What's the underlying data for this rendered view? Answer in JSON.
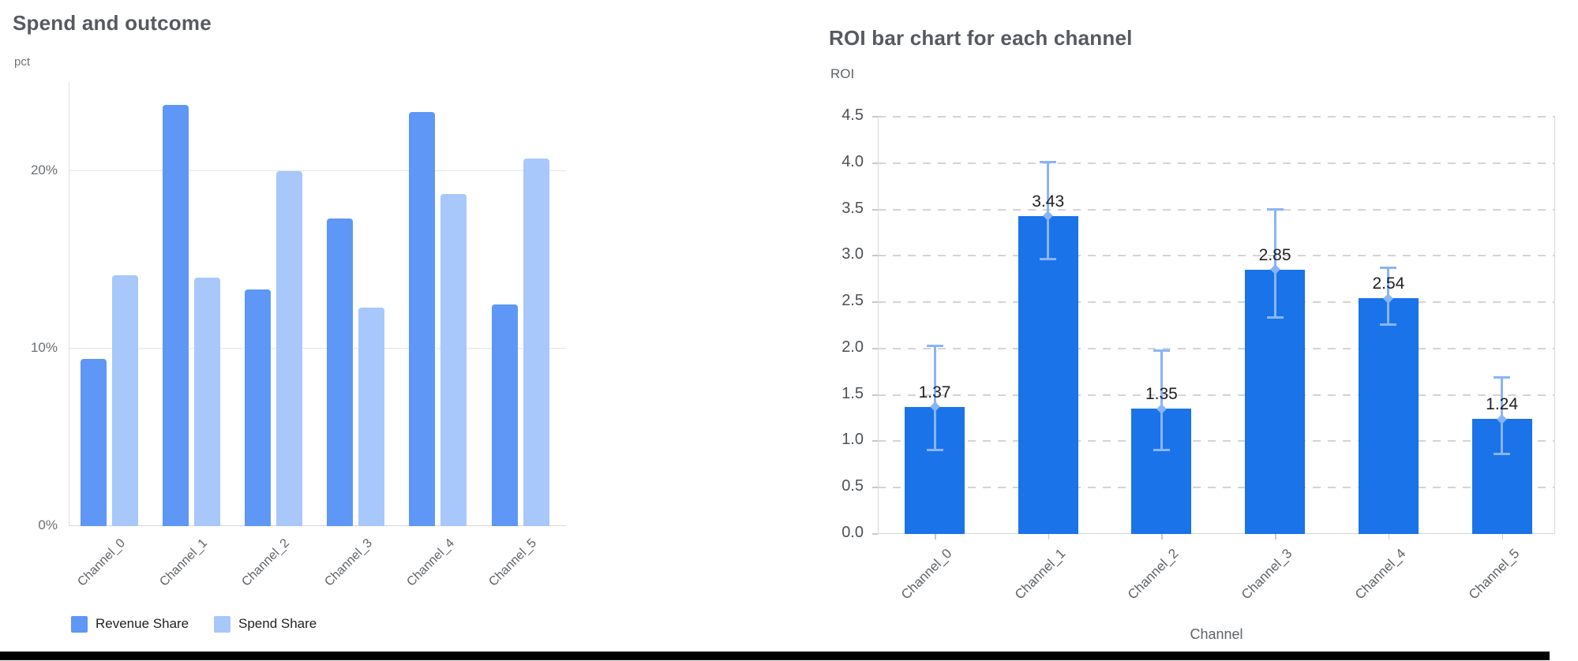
{
  "chart_data": [
    {
      "type": "bar",
      "title": "Spend and outcome",
      "ylabel": "pct",
      "xlabel": "",
      "categories": [
        "Channel_0",
        "Channel_1",
        "Channel_2",
        "Channel_3",
        "Channel_4",
        "Channel_5"
      ],
      "series": [
        {
          "name": "Revenue Share",
          "color": "#5E97F6",
          "values": [
            9.4,
            23.7,
            13.3,
            17.3,
            23.3,
            12.5
          ]
        },
        {
          "name": "Spend Share",
          "color": "#A8C7FA",
          "values": [
            14.1,
            14.0,
            20.0,
            12.3,
            18.7,
            20.7
          ]
        }
      ],
      "ylim": [
        0,
        25
      ],
      "yticks": [
        {
          "v": 0,
          "label": "0%"
        },
        {
          "v": 10,
          "label": "10%"
        },
        {
          "v": 20,
          "label": "20%"
        }
      ],
      "grid": "solid-horizontal",
      "legend_position": "bottom-left"
    },
    {
      "type": "bar",
      "title": "ROI bar chart for each channel",
      "ylabel": "ROI",
      "xlabel": "Channel",
      "categories": [
        "Channel_0",
        "Channel_1",
        "Channel_2",
        "Channel_3",
        "Channel_4",
        "Channel_5"
      ],
      "values": [
        1.37,
        3.43,
        1.35,
        2.85,
        2.54,
        1.24
      ],
      "bar_labels": [
        "1.37",
        "3.43",
        "1.35",
        "2.85",
        "2.54",
        "1.24"
      ],
      "error_low": [
        0.89,
        2.95,
        0.89,
        2.32,
        2.25,
        0.85
      ],
      "error_high": [
        2.04,
        4.02,
        1.99,
        3.51,
        2.88,
        1.7
      ],
      "bar_color": "#1A73E8",
      "error_color": "#8AB4F8",
      "ylim": [
        0,
        4.5
      ],
      "yticks": [
        {
          "v": 0.0,
          "label": "0.0"
        },
        {
          "v": 0.5,
          "label": "0.5"
        },
        {
          "v": 1.0,
          "label": "1.0"
        },
        {
          "v": 1.5,
          "label": "1.5"
        },
        {
          "v": 2.0,
          "label": "2.0"
        },
        {
          "v": 2.5,
          "label": "2.5"
        },
        {
          "v": 3.0,
          "label": "3.0"
        },
        {
          "v": 3.5,
          "label": "3.5"
        },
        {
          "v": 4.0,
          "label": "4.0"
        },
        {
          "v": 4.5,
          "label": "4.5"
        }
      ],
      "grid": "dashed-horizontal",
      "legend_position": "none"
    }
  ]
}
